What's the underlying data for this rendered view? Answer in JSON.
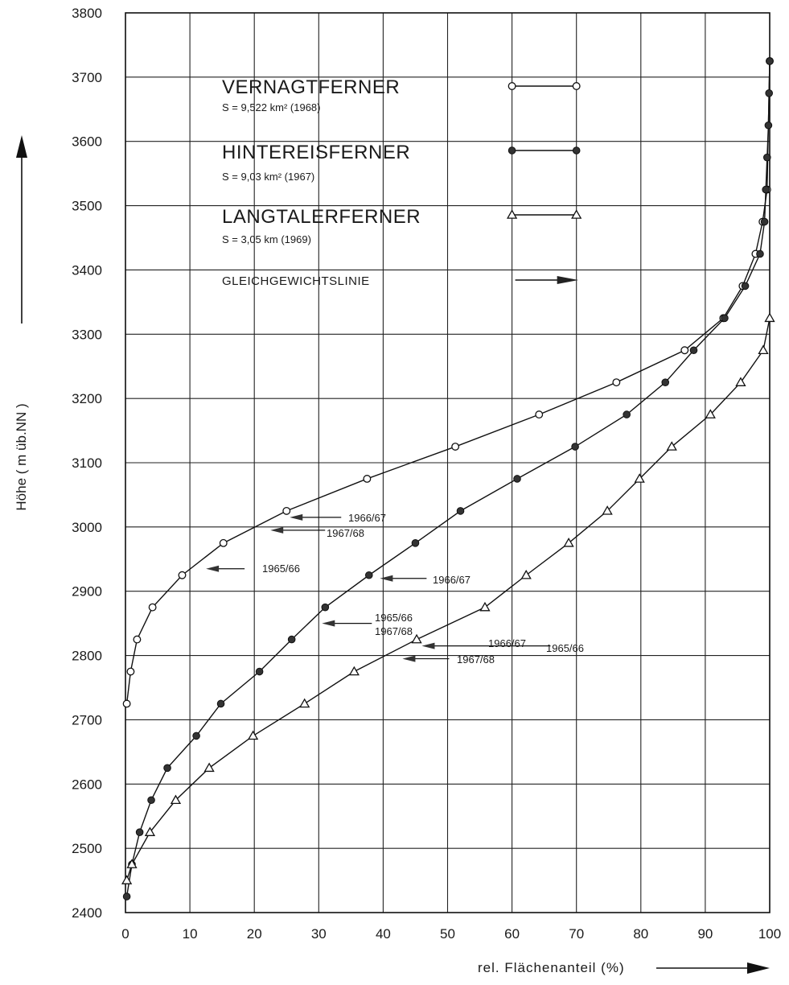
{
  "chart_data": {
    "type": "line",
    "xlabel": "rel. Flächenanteil (%)",
    "ylabel": "Höhe ( m üb.NN )",
    "xlim": [
      0,
      100
    ],
    "ylim": [
      2400,
      3800
    ],
    "x_ticks": [
      0,
      10,
      20,
      30,
      40,
      50,
      60,
      70,
      80,
      90,
      100
    ],
    "y_ticks": [
      2400,
      2500,
      2600,
      2700,
      2800,
      2900,
      3000,
      3100,
      3200,
      3300,
      3400,
      3500,
      3600,
      3700,
      3800
    ],
    "grid": true,
    "legend_position": "top-center",
    "series": [
      {
        "name": "VERNAGTFERNER",
        "info": "S = 9,522 km² (1968)",
        "marker": "open-circle",
        "points": [
          [
            0.2,
            2725
          ],
          [
            0.8,
            2775
          ],
          [
            1.8,
            2825
          ],
          [
            4.2,
            2875
          ],
          [
            8.8,
            2925
          ],
          [
            15.2,
            2975
          ],
          [
            25.0,
            3025
          ],
          [
            37.5,
            3075
          ],
          [
            51.2,
            3125
          ],
          [
            64.2,
            3175
          ],
          [
            76.2,
            3225
          ],
          [
            86.8,
            3275
          ],
          [
            92.8,
            3325
          ],
          [
            95.8,
            3375
          ],
          [
            97.8,
            3425
          ],
          [
            98.9,
            3475
          ],
          [
            99.6,
            3525
          ],
          [
            100,
            3725
          ]
        ]
      },
      {
        "name": "HINTEREISFERNER",
        "info": "S = 9,03 km² (1967)",
        "marker": "filled-circle",
        "points": [
          [
            0.2,
            2425
          ],
          [
            1.0,
            2475
          ],
          [
            2.2,
            2525
          ],
          [
            4.0,
            2575
          ],
          [
            6.5,
            2625
          ],
          [
            11.0,
            2675
          ],
          [
            14.8,
            2725
          ],
          [
            20.8,
            2775
          ],
          [
            25.8,
            2825
          ],
          [
            31.0,
            2875
          ],
          [
            37.8,
            2925
          ],
          [
            45.0,
            2975
          ],
          [
            52.0,
            3025
          ],
          [
            60.8,
            3075
          ],
          [
            69.8,
            3125
          ],
          [
            77.8,
            3175
          ],
          [
            83.8,
            3225
          ],
          [
            88.2,
            3275
          ],
          [
            93.0,
            3325
          ],
          [
            96.2,
            3375
          ],
          [
            98.5,
            3425
          ],
          [
            99.2,
            3475
          ],
          [
            99.4,
            3525
          ],
          [
            99.6,
            3575
          ],
          [
            99.8,
            3625
          ],
          [
            99.9,
            3675
          ],
          [
            100,
            3725
          ]
        ]
      },
      {
        "name": "LANGTALERFERNER",
        "info": "S = 3,05 km (1969)",
        "marker": "triangle",
        "points": [
          [
            0.2,
            2450
          ],
          [
            1.0,
            2475
          ],
          [
            3.8,
            2525
          ],
          [
            7.8,
            2575
          ],
          [
            13.0,
            2625
          ],
          [
            19.8,
            2675
          ],
          [
            27.8,
            2725
          ],
          [
            35.5,
            2775
          ],
          [
            45.2,
            2825
          ],
          [
            55.8,
            2875
          ],
          [
            62.2,
            2925
          ],
          [
            68.8,
            2975
          ],
          [
            74.8,
            3025
          ],
          [
            79.8,
            3075
          ],
          [
            84.8,
            3125
          ],
          [
            90.8,
            3175
          ],
          [
            95.5,
            3225
          ],
          [
            99.0,
            3275
          ],
          [
            100,
            3325
          ]
        ]
      }
    ],
    "equilibrium_legend": "GLEICHGEWICHTSLINIE",
    "annotations": [
      {
        "label": "1966/67",
        "x": 25.5,
        "y": 3015
      },
      {
        "label": "1967/68",
        "x": 22.5,
        "y": 2995
      },
      {
        "label": "1965/66",
        "x": 12.5,
        "y": 2935
      },
      {
        "label": "1966/67",
        "x": 39.5,
        "y": 2920
      },
      {
        "label": "1965/66",
        "x": 30.5,
        "y": 2850
      },
      {
        "label": "1967/68",
        "x": 30.5,
        "y": 2850
      },
      {
        "label": "1966/67",
        "x": 46.0,
        "y": 2815
      },
      {
        "label": "1965/66",
        "x": 46.0,
        "y": 2815
      },
      {
        "label": "1967/68",
        "x": 43.0,
        "y": 2795
      }
    ]
  }
}
